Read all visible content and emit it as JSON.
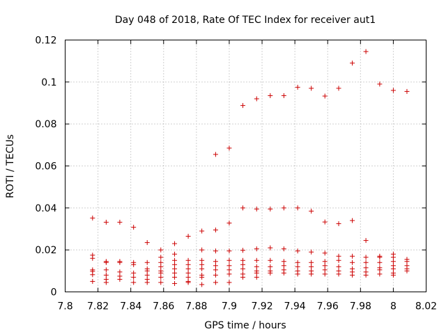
{
  "chart_data": {
    "type": "scatter",
    "title": "Day 048 of 2018, Rate Of TEC Index for receiver aut1",
    "xlabel": "GPS time / hours",
    "ylabel": "ROTI / TECUs",
    "xlim": [
      7.8,
      8.02
    ],
    "ylim": [
      0,
      0.12
    ],
    "xticks": [
      7.8,
      7.82,
      7.84,
      7.86,
      7.88,
      7.9,
      7.92,
      7.94,
      7.96,
      7.98,
      8.0,
      8.02
    ],
    "xtick_labels": [
      "7.8",
      "7.82",
      "7.84",
      "7.86",
      "7.88",
      "7.9",
      "7.92",
      "7.94",
      "7.96",
      "7.98",
      "8",
      "8.02"
    ],
    "yticks": [
      0,
      0.02,
      0.04,
      0.06,
      0.08,
      0.1,
      0.12
    ],
    "ytick_labels": [
      "0",
      "0.02",
      "0.04",
      "0.06",
      "0.08",
      "0.1",
      "0.12"
    ],
    "grid": true,
    "marker": "+",
    "color": "#cc0000",
    "series": [
      {
        "name": "ROTI",
        "points": [
          [
            7.8167,
            0.0352
          ],
          [
            7.8167,
            0.0175
          ],
          [
            7.8167,
            0.016
          ],
          [
            7.8167,
            0.0105
          ],
          [
            7.8167,
            0.0098
          ],
          [
            7.8167,
            0.0082
          ],
          [
            7.8167,
            0.005
          ],
          [
            7.825,
            0.0332
          ],
          [
            7.825,
            0.0145
          ],
          [
            7.825,
            0.014
          ],
          [
            7.825,
            0.0105
          ],
          [
            7.825,
            0.008
          ],
          [
            7.825,
            0.006
          ],
          [
            7.825,
            0.0045
          ],
          [
            7.8333,
            0.0332
          ],
          [
            7.8333,
            0.0145
          ],
          [
            7.8333,
            0.014
          ],
          [
            7.8333,
            0.0095
          ],
          [
            7.8333,
            0.0075
          ],
          [
            7.8333,
            0.006
          ],
          [
            7.8417,
            0.0308
          ],
          [
            7.8417,
            0.014
          ],
          [
            7.8417,
            0.013
          ],
          [
            7.8417,
            0.009
          ],
          [
            7.8417,
            0.007
          ],
          [
            7.8417,
            0.0045
          ],
          [
            7.85,
            0.0235
          ],
          [
            7.85,
            0.014
          ],
          [
            7.85,
            0.011
          ],
          [
            7.85,
            0.01
          ],
          [
            7.85,
            0.008
          ],
          [
            7.85,
            0.006
          ],
          [
            7.85,
            0.0045
          ],
          [
            7.8583,
            0.02
          ],
          [
            7.8583,
            0.0165
          ],
          [
            7.8583,
            0.014
          ],
          [
            7.8583,
            0.012
          ],
          [
            7.8583,
            0.01
          ],
          [
            7.8583,
            0.009
          ],
          [
            7.8583,
            0.007
          ],
          [
            7.8583,
            0.0045
          ],
          [
            7.8667,
            0.023
          ],
          [
            7.8667,
            0.018
          ],
          [
            7.8667,
            0.015
          ],
          [
            7.8667,
            0.013
          ],
          [
            7.8667,
            0.011
          ],
          [
            7.8667,
            0.009
          ],
          [
            7.8667,
            0.007
          ],
          [
            7.8667,
            0.004
          ],
          [
            7.875,
            0.0265
          ],
          [
            7.875,
            0.015
          ],
          [
            7.875,
            0.013
          ],
          [
            7.875,
            0.011
          ],
          [
            7.875,
            0.009
          ],
          [
            7.875,
            0.007
          ],
          [
            7.875,
            0.005
          ],
          [
            7.875,
            0.0045
          ],
          [
            7.8833,
            0.029
          ],
          [
            7.8833,
            0.02
          ],
          [
            7.8833,
            0.015
          ],
          [
            7.8833,
            0.013
          ],
          [
            7.8833,
            0.011
          ],
          [
            7.8833,
            0.008
          ],
          [
            7.8833,
            0.007
          ],
          [
            7.8833,
            0.0035
          ],
          [
            7.8917,
            0.0655
          ],
          [
            7.8917,
            0.0295
          ],
          [
            7.8917,
            0.0195
          ],
          [
            7.8917,
            0.0145
          ],
          [
            7.8917,
            0.0125
          ],
          [
            7.8917,
            0.0105
          ],
          [
            7.8917,
            0.008
          ],
          [
            7.8917,
            0.0045
          ],
          [
            7.9,
            0.0685
          ],
          [
            7.9,
            0.0328
          ],
          [
            7.9,
            0.0195
          ],
          [
            7.9,
            0.015
          ],
          [
            7.9,
            0.0125
          ],
          [
            7.9,
            0.0105
          ],
          [
            7.9,
            0.0085
          ],
          [
            7.9,
            0.0045
          ],
          [
            7.9083,
            0.0888
          ],
          [
            7.9083,
            0.04
          ],
          [
            7.9083,
            0.0198
          ],
          [
            7.9083,
            0.015
          ],
          [
            7.9083,
            0.013
          ],
          [
            7.9083,
            0.011
          ],
          [
            7.9083,
            0.0085
          ],
          [
            7.9083,
            0.007
          ],
          [
            7.9167,
            0.092
          ],
          [
            7.9167,
            0.0395
          ],
          [
            7.9167,
            0.0205
          ],
          [
            7.9167,
            0.015
          ],
          [
            7.9167,
            0.012
          ],
          [
            7.9167,
            0.01
          ],
          [
            7.9167,
            0.009
          ],
          [
            7.9167,
            0.007
          ],
          [
            7.925,
            0.0935
          ],
          [
            7.925,
            0.0395
          ],
          [
            7.925,
            0.021
          ],
          [
            7.925,
            0.015
          ],
          [
            7.925,
            0.012
          ],
          [
            7.925,
            0.01
          ],
          [
            7.925,
            0.009
          ],
          [
            7.9333,
            0.0935
          ],
          [
            7.9333,
            0.04
          ],
          [
            7.9333,
            0.0205
          ],
          [
            7.9333,
            0.0145
          ],
          [
            7.9333,
            0.0125
          ],
          [
            7.9333,
            0.0105
          ],
          [
            7.9333,
            0.009
          ],
          [
            7.9417,
            0.0975
          ],
          [
            7.9417,
            0.04
          ],
          [
            7.9417,
            0.0195
          ],
          [
            7.9417,
            0.014
          ],
          [
            7.9417,
            0.012
          ],
          [
            7.9417,
            0.01
          ],
          [
            7.9417,
            0.0085
          ],
          [
            7.95,
            0.097
          ],
          [
            7.95,
            0.0385
          ],
          [
            7.95,
            0.019
          ],
          [
            7.95,
            0.014
          ],
          [
            7.95,
            0.012
          ],
          [
            7.95,
            0.01
          ],
          [
            7.95,
            0.0085
          ],
          [
            7.9583,
            0.0933
          ],
          [
            7.9583,
            0.0333
          ],
          [
            7.9583,
            0.0185
          ],
          [
            7.9583,
            0.0145
          ],
          [
            7.9583,
            0.0125
          ],
          [
            7.9583,
            0.0105
          ],
          [
            7.9583,
            0.0085
          ],
          [
            7.9667,
            0.097
          ],
          [
            7.9667,
            0.0325
          ],
          [
            7.9667,
            0.017
          ],
          [
            7.9667,
            0.015
          ],
          [
            7.9667,
            0.012
          ],
          [
            7.9667,
            0.01
          ],
          [
            7.9667,
            0.0085
          ],
          [
            7.975,
            0.109
          ],
          [
            7.975,
            0.034
          ],
          [
            7.975,
            0.017
          ],
          [
            7.975,
            0.014
          ],
          [
            7.975,
            0.011
          ],
          [
            7.975,
            0.0095
          ],
          [
            7.975,
            0.008
          ],
          [
            7.9833,
            0.1145
          ],
          [
            7.9833,
            0.0245
          ],
          [
            7.9833,
            0.0165
          ],
          [
            7.9833,
            0.014
          ],
          [
            7.9833,
            0.0115
          ],
          [
            7.9833,
            0.0095
          ],
          [
            7.9833,
            0.008
          ],
          [
            7.9917,
            0.099
          ],
          [
            7.9917,
            0.017
          ],
          [
            7.9917,
            0.0165
          ],
          [
            7.9917,
            0.014
          ],
          [
            7.9917,
            0.0115
          ],
          [
            7.9917,
            0.0105
          ],
          [
            7.9917,
            0.0085
          ],
          [
            8.0,
            0.096
          ],
          [
            8.0,
            0.018
          ],
          [
            8.0,
            0.0165
          ],
          [
            8.0,
            0.0145
          ],
          [
            8.0,
            0.0125
          ],
          [
            8.0,
            0.011
          ],
          [
            8.0,
            0.009
          ],
          [
            8.0,
            0.008
          ],
          [
            8.0083,
            0.0955
          ],
          [
            8.0083,
            0.0155
          ],
          [
            8.0083,
            0.0145
          ],
          [
            8.0083,
            0.0125
          ],
          [
            8.0083,
            0.011
          ],
          [
            8.0083,
            0.01
          ]
        ]
      }
    ]
  }
}
